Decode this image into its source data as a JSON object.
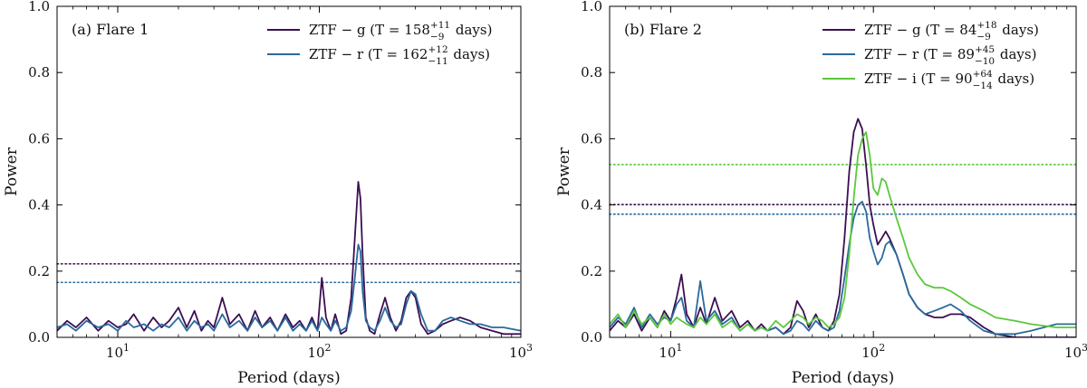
{
  "chart_data": [
    {
      "type": "line",
      "panel_label": "(a) Flare 1",
      "xlabel": "Period (days)",
      "ylabel": "Power",
      "xscale": "log",
      "xlim": [
        5,
        1000
      ],
      "ylim": [
        0,
        1.0
      ],
      "y_ticks": [
        "0.0",
        "0.2",
        "0.4",
        "0.6",
        "0.8",
        "1.0"
      ],
      "x_ticks": [
        {
          "base": "10",
          "exp": "1",
          "value": 10
        },
        {
          "base": "10",
          "exp": "2",
          "value": 100
        },
        {
          "base": "10",
          "exp": "3",
          "value": 1000
        }
      ],
      "legend_position": "top-right",
      "series": [
        {
          "name": "ZTF − g",
          "legend": {
            "prefix": "ZTF − g  (T = 158",
            "sup": "+11",
            "sub": "−9",
            "suffix": " days)"
          },
          "color": "#3b0f52",
          "threshold": 0.222,
          "x": [
            5,
            5.6,
            6.2,
            7,
            8,
            9,
            10,
            11,
            12,
            13.5,
            15,
            16.5,
            18,
            20,
            22,
            24,
            26,
            28,
            30,
            33,
            36,
            40,
            44,
            48,
            52,
            57,
            62,
            68,
            74,
            80,
            86,
            92,
            98,
            103,
            108,
            114,
            120,
            128,
            136,
            144,
            150,
            156,
            160,
            164,
            170,
            178,
            188,
            200,
            212,
            225,
            240,
            255,
            270,
            285,
            300,
            320,
            345,
            375,
            410,
            450,
            500,
            560,
            630,
            720,
            820,
            1000
          ],
          "y": [
            0.02,
            0.05,
            0.03,
            0.06,
            0.02,
            0.05,
            0.03,
            0.04,
            0.07,
            0.02,
            0.06,
            0.03,
            0.05,
            0.09,
            0.03,
            0.08,
            0.02,
            0.05,
            0.03,
            0.12,
            0.04,
            0.07,
            0.02,
            0.08,
            0.03,
            0.06,
            0.02,
            0.07,
            0.03,
            0.05,
            0.02,
            0.06,
            0.02,
            0.18,
            0.06,
            0.02,
            0.07,
            0.01,
            0.02,
            0.12,
            0.3,
            0.47,
            0.42,
            0.25,
            0.06,
            0.02,
            0.01,
            0.07,
            0.12,
            0.06,
            0.02,
            0.05,
            0.12,
            0.14,
            0.12,
            0.04,
            0.01,
            0.02,
            0.04,
            0.05,
            0.06,
            0.05,
            0.03,
            0.02,
            0.01,
            0.01
          ]
        },
        {
          "name": "ZTF − r",
          "legend": {
            "prefix": "ZTF − r  (T = 162",
            "sup": "+12",
            "sub": "−11",
            "suffix": " days)"
          },
          "color": "#2a6a9e",
          "threshold": 0.166,
          "x": [
            5,
            5.6,
            6.2,
            7,
            8,
            9,
            10,
            11,
            12,
            13.5,
            15,
            16.5,
            18,
            20,
            22,
            24,
            26,
            28,
            30,
            33,
            36,
            40,
            44,
            48,
            52,
            57,
            62,
            68,
            74,
            80,
            86,
            92,
            98,
            103,
            108,
            114,
            120,
            128,
            136,
            144,
            150,
            156,
            160,
            164,
            170,
            178,
            188,
            200,
            212,
            225,
            240,
            255,
            270,
            285,
            300,
            320,
            345,
            375,
            410,
            450,
            500,
            560,
            630,
            720,
            820,
            1000
          ],
          "y": [
            0.03,
            0.04,
            0.02,
            0.05,
            0.03,
            0.04,
            0.02,
            0.05,
            0.03,
            0.04,
            0.02,
            0.04,
            0.03,
            0.06,
            0.02,
            0.05,
            0.03,
            0.04,
            0.02,
            0.07,
            0.03,
            0.05,
            0.02,
            0.06,
            0.03,
            0.05,
            0.02,
            0.06,
            0.02,
            0.04,
            0.02,
            0.05,
            0.02,
            0.06,
            0.04,
            0.02,
            0.05,
            0.02,
            0.03,
            0.08,
            0.18,
            0.28,
            0.26,
            0.14,
            0.05,
            0.03,
            0.02,
            0.05,
            0.09,
            0.05,
            0.03,
            0.04,
            0.1,
            0.14,
            0.13,
            0.07,
            0.02,
            0.02,
            0.05,
            0.06,
            0.05,
            0.04,
            0.04,
            0.03,
            0.03,
            0.02
          ]
        }
      ]
    },
    {
      "type": "line",
      "panel_label": "(b) Flare 2",
      "xlabel": "Period (days)",
      "ylabel": "Power",
      "xscale": "log",
      "xlim": [
        5,
        1000
      ],
      "ylim": [
        0,
        1.0
      ],
      "y_ticks": [
        "0.0",
        "0.2",
        "0.4",
        "0.6",
        "0.8",
        "1.0"
      ],
      "x_ticks": [
        {
          "base": "10",
          "exp": "1",
          "value": 10
        },
        {
          "base": "10",
          "exp": "2",
          "value": 100
        },
        {
          "base": "10",
          "exp": "3",
          "value": 1000
        }
      ],
      "legend_position": "top-right",
      "series": [
        {
          "name": "ZTF − g",
          "legend": {
            "prefix": "ZTF − g  (T = 84",
            "sup": "+18",
            "sub": "−9",
            "suffix": " days)"
          },
          "color": "#3b0f52",
          "threshold": 0.401,
          "x": [
            5,
            5.5,
            6,
            6.6,
            7.2,
            7.9,
            8.6,
            9.3,
            10,
            10.7,
            11.3,
            12,
            13,
            14,
            15,
            16.5,
            18,
            20,
            22,
            24,
            26,
            28,
            30,
            33,
            36,
            39,
            42,
            45,
            48,
            52,
            56,
            60,
            64,
            68,
            72,
            76,
            80,
            84,
            88,
            92,
            96,
            100,
            105,
            110,
            115,
            120,
            130,
            140,
            150,
            165,
            180,
            200,
            220,
            240,
            270,
            300,
            350,
            400,
            500,
            600,
            800,
            1000
          ],
          "y": [
            0.02,
            0.05,
            0.03,
            0.07,
            0.02,
            0.06,
            0.03,
            0.08,
            0.05,
            0.12,
            0.19,
            0.07,
            0.03,
            0.09,
            0.04,
            0.12,
            0.05,
            0.08,
            0.03,
            0.05,
            0.02,
            0.04,
            0.02,
            0.03,
            0.01,
            0.03,
            0.11,
            0.08,
            0.03,
            0.07,
            0.03,
            0.02,
            0.05,
            0.13,
            0.3,
            0.5,
            0.62,
            0.66,
            0.63,
            0.52,
            0.4,
            0.34,
            0.28,
            0.3,
            0.32,
            0.3,
            0.25,
            0.19,
            0.13,
            0.09,
            0.07,
            0.06,
            0.06,
            0.07,
            0.07,
            0.06,
            0.03,
            0.01,
            0.0,
            0.0,
            0.0,
            0.0
          ]
        },
        {
          "name": "ZTF − r",
          "legend": {
            "prefix": "ZTF − r  (T = 89",
            "sup": "+45",
            "sub": "−10",
            "suffix": " days)"
          },
          "color": "#2a6a9e",
          "threshold": 0.372,
          "x": [
            5,
            5.5,
            6,
            6.6,
            7.2,
            7.9,
            8.6,
            9.3,
            10,
            10.7,
            11.3,
            12,
            13,
            14,
            15,
            16.5,
            18,
            20,
            22,
            24,
            26,
            28,
            30,
            33,
            36,
            39,
            42,
            45,
            48,
            52,
            56,
            60,
            64,
            68,
            72,
            76,
            80,
            84,
            88,
            92,
            96,
            100,
            105,
            110,
            115,
            120,
            130,
            140,
            150,
            165,
            180,
            200,
            220,
            240,
            270,
            300,
            350,
            400,
            500,
            600,
            800,
            1000
          ],
          "y": [
            0.03,
            0.06,
            0.04,
            0.09,
            0.03,
            0.07,
            0.04,
            0.06,
            0.05,
            0.1,
            0.12,
            0.05,
            0.03,
            0.17,
            0.05,
            0.08,
            0.04,
            0.06,
            0.02,
            0.04,
            0.02,
            0.03,
            0.02,
            0.03,
            0.01,
            0.02,
            0.05,
            0.04,
            0.02,
            0.05,
            0.03,
            0.02,
            0.03,
            0.08,
            0.18,
            0.28,
            0.36,
            0.4,
            0.41,
            0.38,
            0.3,
            0.26,
            0.22,
            0.24,
            0.28,
            0.29,
            0.25,
            0.19,
            0.13,
            0.09,
            0.07,
            0.08,
            0.09,
            0.1,
            0.08,
            0.05,
            0.02,
            0.01,
            0.01,
            0.02,
            0.04,
            0.04
          ]
        },
        {
          "name": "ZTF − i",
          "legend": {
            "prefix": "ZTF − i  (T = 90",
            "sup": "+64",
            "sub": "−14",
            "suffix": " days)"
          },
          "color": "#5ac83c",
          "threshold": 0.522,
          "x": [
            5,
            5.5,
            6,
            6.6,
            7.2,
            7.9,
            8.6,
            9.3,
            10,
            10.7,
            11.3,
            12,
            13,
            14,
            15,
            16.5,
            18,
            20,
            22,
            24,
            26,
            28,
            30,
            33,
            36,
            39,
            42,
            45,
            48,
            52,
            56,
            60,
            64,
            68,
            72,
            76,
            80,
            84,
            88,
            92,
            96,
            100,
            105,
            110,
            115,
            120,
            130,
            140,
            150,
            165,
            180,
            200,
            220,
            240,
            270,
            300,
            350,
            400,
            500,
            600,
            800,
            1000
          ],
          "y": [
            0.04,
            0.07,
            0.03,
            0.08,
            0.04,
            0.06,
            0.03,
            0.07,
            0.04,
            0.06,
            0.05,
            0.04,
            0.03,
            0.06,
            0.04,
            0.07,
            0.03,
            0.05,
            0.02,
            0.04,
            0.02,
            0.03,
            0.02,
            0.05,
            0.03,
            0.05,
            0.07,
            0.06,
            0.04,
            0.06,
            0.05,
            0.03,
            0.04,
            0.06,
            0.12,
            0.25,
            0.42,
            0.55,
            0.6,
            0.62,
            0.55,
            0.45,
            0.43,
            0.48,
            0.47,
            0.43,
            0.36,
            0.3,
            0.24,
            0.19,
            0.16,
            0.15,
            0.15,
            0.14,
            0.12,
            0.1,
            0.08,
            0.06,
            0.05,
            0.04,
            0.03,
            0.03
          ]
        }
      ]
    }
  ]
}
